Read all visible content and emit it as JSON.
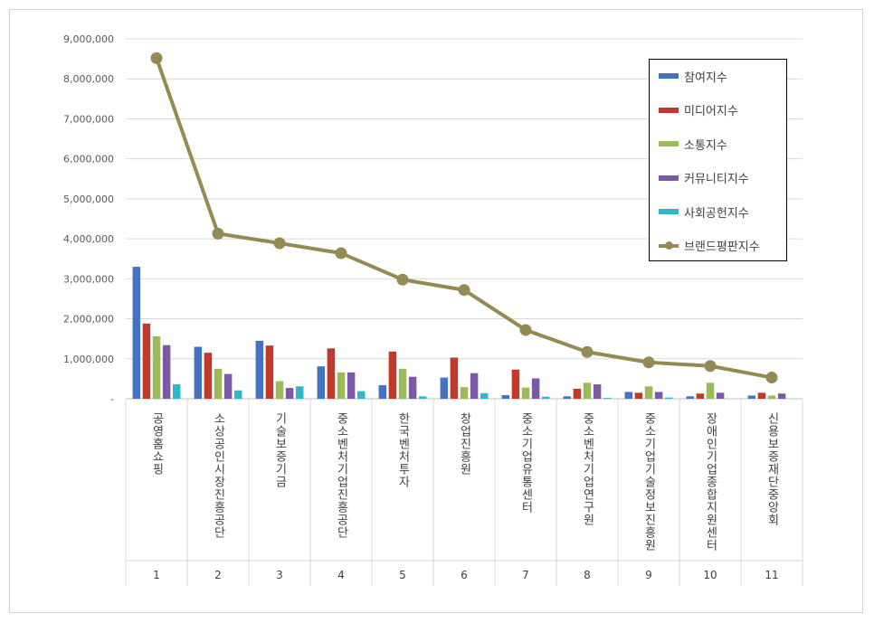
{
  "chart_data": {
    "type": "bar",
    "categories": [
      "공영홈쇼핑",
      "소상공인시장진흥공단",
      "기술보증기금",
      "중소벤처기업진흥공단",
      "한국벤처투자",
      "창업진흥원",
      "중소기업유통센터",
      "중소벤처기업연구원",
      "중소기업기술정보진흥원",
      "장애인기업종합지원센터",
      "신용보증재단중앙회"
    ],
    "ranks": [
      "1",
      "2",
      "3",
      "4",
      "5",
      "6",
      "7",
      "8",
      "9",
      "10",
      "11"
    ],
    "ylim": [
      0,
      9000000
    ],
    "yticks": [
      "-",
      "1,000,000",
      "2,000,000",
      "3,000,000",
      "4,000,000",
      "5,000,000",
      "6,000,000",
      "7,000,000",
      "8,000,000",
      "9,000,000"
    ],
    "grid": true,
    "legend_position": "top-right",
    "series": [
      {
        "name": "참여지수",
        "type": "bar",
        "color": "#4472c4",
        "values": [
          3300000,
          1300000,
          1450000,
          810000,
          340000,
          530000,
          90000,
          60000,
          170000,
          60000,
          80000
        ]
      },
      {
        "name": "미디어지수",
        "type": "bar",
        "color": "#c0392b",
        "values": [
          1880000,
          1150000,
          1330000,
          1260000,
          1180000,
          1030000,
          730000,
          250000,
          150000,
          130000,
          150000
        ]
      },
      {
        "name": "소통지수",
        "type": "bar",
        "color": "#9bbb59",
        "values": [
          1560000,
          750000,
          440000,
          660000,
          750000,
          290000,
          280000,
          400000,
          310000,
          400000,
          80000
        ]
      },
      {
        "name": "커뮤니티지수",
        "type": "bar",
        "color": "#7b59a6",
        "values": [
          1340000,
          620000,
          270000,
          660000,
          550000,
          640000,
          510000,
          360000,
          170000,
          150000,
          130000
        ]
      },
      {
        "name": "사회공헌지수",
        "type": "bar",
        "color": "#31b6c9",
        "values": [
          360000,
          210000,
          310000,
          190000,
          60000,
          140000,
          50000,
          20000,
          30000,
          0,
          0
        ]
      },
      {
        "name": "브랜드평판지수",
        "type": "line",
        "color": "#948a54",
        "values": [
          8520000,
          4130000,
          3890000,
          3640000,
          2980000,
          2720000,
          1720000,
          1170000,
          910000,
          820000,
          530000
        ]
      }
    ]
  }
}
